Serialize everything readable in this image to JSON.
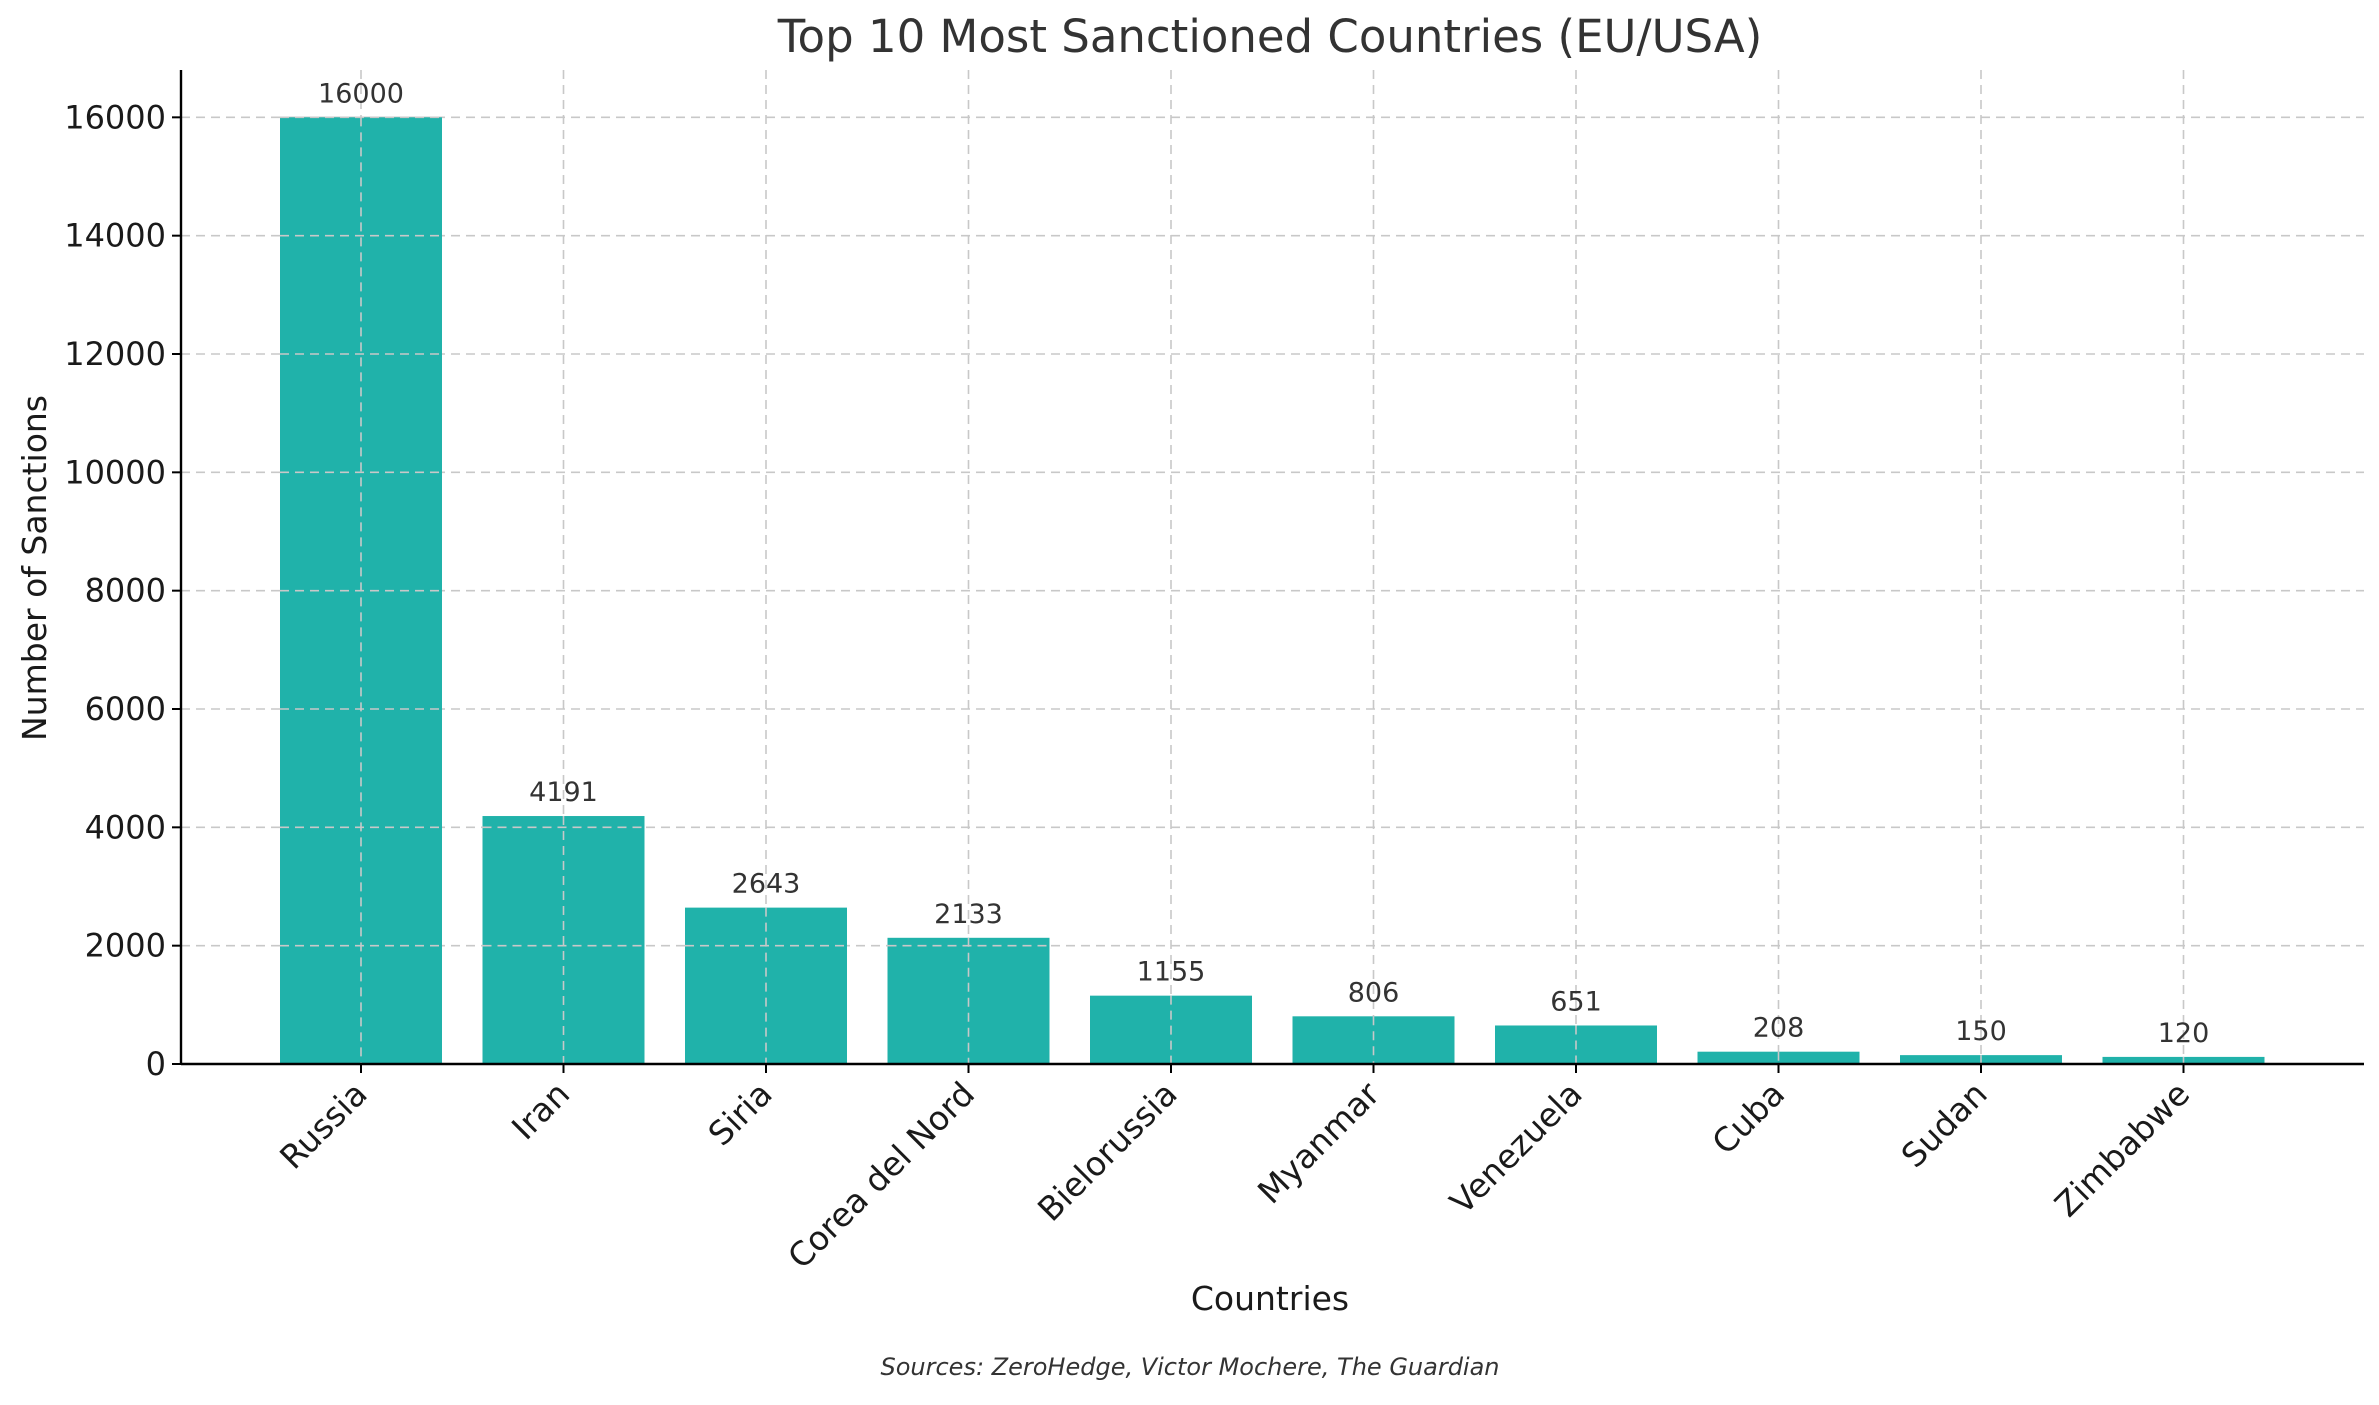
{
  "chart_data": {
    "type": "bar",
    "title": "Top 10 Most Sanctioned Countries (EU/USA)",
    "xlabel": "Countries",
    "ylabel": "Number of Sanctions",
    "categories": [
      "Russia",
      "Iran",
      "Siria",
      "Corea del Nord",
      "Bielorussia",
      "Myanmar",
      "Venezuela",
      "Cuba",
      "Sudan",
      "Zimbabwe"
    ],
    "values": [
      16000,
      4191,
      2643,
      2133,
      1155,
      806,
      651,
      208,
      150,
      120
    ],
    "data_labels": [
      "16000",
      "4191",
      "2643",
      "2133",
      "1155",
      "806",
      "651",
      "208",
      "150",
      "120"
    ],
    "ylim": [
      0,
      16800
    ],
    "yticks": [
      0,
      2000,
      4000,
      6000,
      8000,
      10000,
      12000,
      14000,
      16000
    ],
    "ytick_labels": [
      "0",
      "2000",
      "4000",
      "6000",
      "8000",
      "10000",
      "12000",
      "14000",
      "16000"
    ],
    "grid": true,
    "bar_color": "#20b2aa",
    "source_note": "Sources: ZeroHedge, Victor Mochere, The Guardian"
  }
}
